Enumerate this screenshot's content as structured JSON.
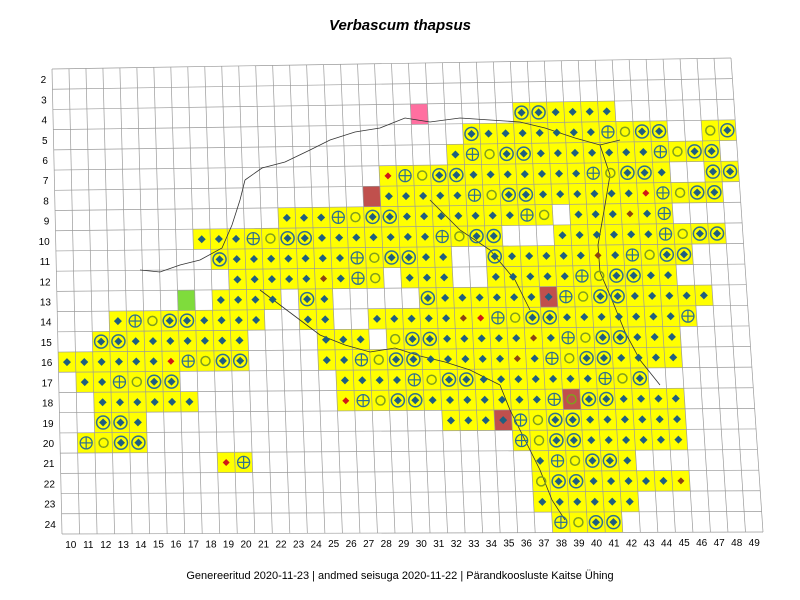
{
  "map": {
    "title": "Verbascum thapsus",
    "footer": "Genereeritud 2020-11-23  |  andmed seisuga 2020-11-22  |  Pärandkoosluste Kaitse Ühing",
    "x_labels": [
      "10",
      "11",
      "12",
      "13",
      "14",
      "15",
      "16",
      "17",
      "18",
      "19",
      "20",
      "21",
      "22",
      "23",
      "24",
      "25",
      "26",
      "27",
      "28",
      "29",
      "30",
      "31",
      "32",
      "33",
      "34",
      "35",
      "36",
      "37",
      "38",
      "39",
      "40",
      "41",
      "42",
      "43",
      "44",
      "45",
      "46",
      "47",
      "48",
      "49"
    ],
    "y_labels": [
      "2",
      "3",
      "4",
      "5",
      "6",
      "7",
      "8",
      "9",
      "10",
      "11",
      "12",
      "13",
      "14",
      "15",
      "16",
      "17",
      "18",
      "19",
      "20",
      "21",
      "22",
      "23",
      "24"
    ],
    "colors": {
      "grid": "#9a9a9a",
      "occupied_fill": "#ffff00",
      "highlight_red": "#c0504d",
      "highlight_pink": "#ff6fa0",
      "highlight_green": "#7fdc3c",
      "diamond": "#1f5f7f",
      "circle": "#7f9f1f",
      "ring": "#2f6f8f",
      "red_marker": "#d01818",
      "brown": "#8b4513",
      "coast": "#333333"
    },
    "highlights": [
      {
        "col": "28",
        "row": "8",
        "color": "highlight_red"
      },
      {
        "col": "31",
        "row": "4",
        "color": "highlight_pink"
      },
      {
        "col": "17",
        "row": "13",
        "color": "highlight_green"
      },
      {
        "col": "38",
        "row": "13",
        "color": "highlight_red"
      },
      {
        "col": "39",
        "row": "18",
        "color": "highlight_red"
      },
      {
        "col": "35",
        "row": "19",
        "color": "highlight_red"
      }
    ]
  }
}
